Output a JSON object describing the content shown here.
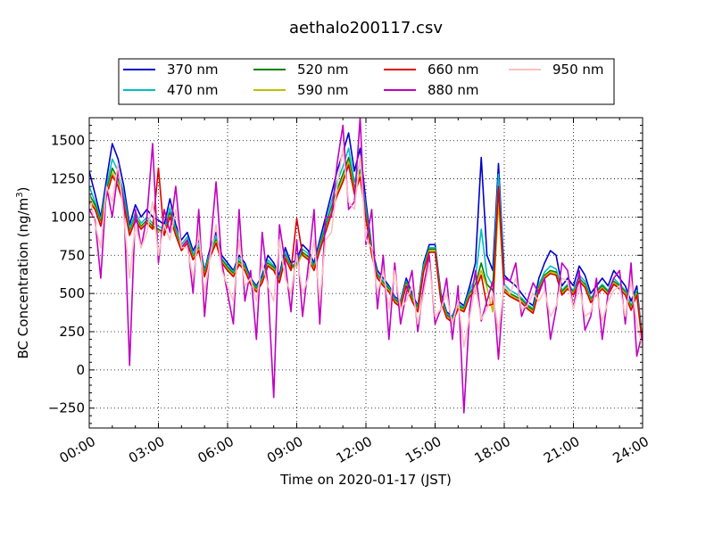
{
  "chart_data": {
    "type": "line",
    "title": "aethalo200117.csv",
    "xlabel": "Time on 2020-01-17 (JST)",
    "ylabel": "BC Concentration (ng/m",
    "ylabel_sup": "3",
    "ylabel_close": ")",
    "xlim": [
      0,
      24
    ],
    "ylim": [
      -380,
      1650
    ],
    "grid": true,
    "legend_position": "top-center",
    "x_ticks": [
      0,
      3,
      6,
      9,
      12,
      15,
      18,
      21,
      24
    ],
    "x_tick_labels": [
      "00:00",
      "03:00",
      "06:00",
      "09:00",
      "12:00",
      "15:00",
      "18:00",
      "21:00",
      "24:00"
    ],
    "y_ticks": [
      -250,
      0,
      250,
      500,
      750,
      1000,
      1250,
      1500
    ],
    "y_tick_labels": [
      "−250",
      "0",
      "250",
      "500",
      "750",
      "1000",
      "1250",
      "1500"
    ],
    "x": [
      0,
      0.25,
      0.5,
      0.75,
      1,
      1.25,
      1.5,
      1.75,
      2,
      2.25,
      2.5,
      2.75,
      3,
      3.25,
      3.5,
      3.75,
      4,
      4.25,
      4.5,
      4.75,
      5,
      5.25,
      5.5,
      5.75,
      6,
      6.25,
      6.5,
      6.75,
      7,
      7.25,
      7.5,
      7.75,
      8,
      8.25,
      8.5,
      8.75,
      9,
      9.25,
      9.5,
      9.75,
      10,
      10.25,
      10.5,
      10.75,
      11,
      11.25,
      11.5,
      11.75,
      12,
      12.25,
      12.5,
      12.75,
      13,
      13.25,
      13.5,
      13.75,
      14,
      14.25,
      14.5,
      14.75,
      15,
      15.25,
      15.5,
      15.75,
      16,
      16.25,
      16.5,
      16.75,
      17,
      17.25,
      17.5,
      17.75,
      18,
      18.25,
      18.5,
      18.75,
      19,
      19.25,
      19.5,
      19.75,
      20,
      20.25,
      20.5,
      20.75,
      21,
      21.25,
      21.5,
      21.75,
      22,
      22.25,
      22.5,
      22.75,
      23,
      23.25,
      23.5,
      23.75,
      24
    ],
    "series": [
      {
        "name": "370 nm",
        "color": "#0000cc",
        "values": [
          1300,
          1150,
          1000,
          1250,
          1480,
          1380,
          1200,
          950,
          1080,
          1000,
          1050,
          1000,
          980,
          950,
          1120,
          950,
          850,
          900,
          780,
          850,
          650,
          800,
          900,
          750,
          700,
          650,
          750,
          700,
          600,
          550,
          620,
          750,
          700,
          620,
          800,
          700,
          720,
          820,
          780,
          700,
          850,
          1000,
          1150,
          1300,
          1420,
          1550,
          1300,
          1450,
          1100,
          800,
          650,
          600,
          550,
          480,
          450,
          600,
          500,
          420,
          700,
          820,
          820,
          500,
          380,
          350,
          450,
          420,
          550,
          700,
          1390,
          750,
          650,
          1350,
          620,
          580,
          550,
          500,
          450,
          420,
          600,
          700,
          780,
          750,
          550,
          600,
          550,
          680,
          620,
          500,
          550,
          600,
          550,
          650,
          600,
          550,
          450,
          550,
          180
        ]
      },
      {
        "name": "470 nm",
        "color": "#00bfbf",
        "values": [
          1200,
          1100,
          980,
          1200,
          1380,
          1300,
          1150,
          920,
          1030,
          960,
          1000,
          960,
          940,
          920,
          1060,
          920,
          820,
          870,
          760,
          820,
          640,
          780,
          870,
          730,
          680,
          640,
          730,
          680,
          590,
          540,
          600,
          720,
          680,
          600,
          770,
          680,
          700,
          790,
          760,
          680,
          820,
          960,
          1100,
          1230,
          1330,
          1450,
          1230,
          1360,
          1050,
          780,
          630,
          580,
          540,
          470,
          440,
          580,
          480,
          410,
          680,
          800,
          800,
          480,
          370,
          340,
          430,
          410,
          520,
          600,
          920,
          620,
          550,
          1280,
          560,
          520,
          500,
          470,
          430,
          400,
          560,
          640,
          680,
          660,
          520,
          560,
          520,
          620,
          580,
          470,
          520,
          560,
          520,
          600,
          560,
          520,
          420,
          520,
          170
        ]
      },
      {
        "name": "520 nm",
        "color": "#008000",
        "values": [
          1150,
          1080,
          960,
          1170,
          1320,
          1250,
          1110,
          900,
          1000,
          940,
          980,
          940,
          920,
          900,
          1030,
          900,
          800,
          850,
          740,
          800,
          630,
          760,
          850,
          720,
          670,
          630,
          710,
          670,
          580,
          530,
          590,
          700,
          670,
          590,
          750,
          670,
          690,
          770,
          740,
          670,
          800,
          930,
          1060,
          1180,
          1280,
          1390,
          1190,
          1310,
          1020,
          770,
          620,
          570,
          530,
          460,
          430,
          570,
          470,
          400,
          660,
          790,
          790,
          470,
          360,
          330,
          420,
          400,
          500,
          560,
          700,
          560,
          520,
          1150,
          530,
          500,
          480,
          460,
          420,
          390,
          540,
          620,
          650,
          640,
          510,
          550,
          510,
          600,
          560,
          460,
          510,
          550,
          510,
          580,
          550,
          510,
          410,
          510,
          165
        ]
      },
      {
        "name": "590 nm",
        "color": "#bfbf00",
        "values": [
          1120,
          1060,
          950,
          1150,
          1290,
          1220,
          1090,
          890,
          990,
          930,
          970,
          930,
          910,
          890,
          1010,
          890,
          790,
          840,
          730,
          790,
          620,
          750,
          840,
          710,
          660,
          620,
          700,
          660,
          570,
          520,
          580,
          690,
          660,
          580,
          740,
          660,
          680,
          760,
          730,
          660,
          790,
          910,
          1040,
          1160,
          1250,
          1360,
          1170,
          1280,
          1000,
          760,
          610,
          560,
          520,
          450,
          420,
          560,
          460,
          390,
          650,
          780,
          780,
          460,
          350,
          320,
          410,
          390,
          490,
          540,
          650,
          540,
          380,
          1100,
          520,
          490,
          470,
          450,
          410,
          380,
          530,
          610,
          640,
          630,
          500,
          540,
          500,
          590,
          550,
          450,
          500,
          540,
          500,
          570,
          540,
          500,
          400,
          500,
          160
        ]
      },
      {
        "name": "660 nm",
        "color": "#dd0000",
        "values": [
          1100,
          1050,
          940,
          1140,
          1270,
          1200,
          1080,
          880,
          980,
          920,
          960,
          920,
          1320,
          880,
          1000,
          880,
          780,
          830,
          720,
          780,
          610,
          740,
          830,
          700,
          650,
          610,
          690,
          650,
          560,
          510,
          570,
          680,
          650,
          570,
          730,
          650,
          990,
          750,
          720,
          650,
          780,
          900,
          1020,
          1140,
          1230,
          1340,
          1150,
          1260,
          990,
          750,
          600,
          550,
          510,
          440,
          410,
          550,
          450,
          380,
          640,
          770,
          770,
          450,
          340,
          310,
          400,
          380,
          480,
          520,
          620,
          420,
          430,
          1200,
          510,
          480,
          460,
          440,
          400,
          370,
          520,
          600,
          630,
          620,
          490,
          530,
          490,
          580,
          540,
          440,
          490,
          530,
          490,
          560,
          530,
          490,
          390,
          490,
          155
        ]
      },
      {
        "name": "880 nm",
        "color": "#c000c0",
        "values": [
          1050,
          980,
          600,
          1200,
          1000,
          1300,
          1100,
          30,
          1050,
          800,
          1000,
          1480,
          700,
          1050,
          900,
          1200,
          800,
          850,
          500,
          1050,
          350,
          800,
          1230,
          700,
          500,
          300,
          1050,
          450,
          650,
          200,
          900,
          550,
          -180,
          950,
          700,
          380,
          850,
          350,
          680,
          1050,
          300,
          1000,
          1000,
          1350,
          1600,
          1050,
          1100,
          1650,
          820,
          1050,
          400,
          750,
          200,
          700,
          300,
          500,
          650,
          250,
          550,
          750,
          300,
          400,
          600,
          200,
          550,
          -280,
          400,
          650,
          320,
          450,
          580,
          70,
          600,
          580,
          700,
          350,
          450,
          570,
          500,
          600,
          200,
          400,
          700,
          650,
          400,
          650,
          260,
          350,
          600,
          200,
          500,
          600,
          650,
          300,
          700,
          90,
          250
        ]
      },
      {
        "name": "950 nm",
        "color": "#ffbfbf",
        "values": [
          1150,
          950,
          800,
          1200,
          1100,
          1350,
          1000,
          600,
          950,
          800,
          900,
          1100,
          750,
          950,
          850,
          1050,
          800,
          800,
          600,
          900,
          500,
          750,
          950,
          650,
          550,
          450,
          850,
          550,
          600,
          450,
          700,
          550,
          450,
          850,
          600,
          500,
          750,
          500,
          600,
          850,
          450,
          850,
          900,
          1200,
          1450,
          1100,
          1050,
          1400,
          850,
          800,
          500,
          650,
          400,
          650,
          400,
          450,
          550,
          300,
          500,
          700,
          350,
          400,
          500,
          300,
          450,
          150,
          350,
          550,
          330,
          400,
          500,
          250,
          550,
          500,
          600,
          400,
          420,
          500,
          450,
          520,
          350,
          420,
          600,
          580,
          400,
          550,
          350,
          380,
          520,
          320,
          450,
          520,
          550,
          350,
          580,
          300,
          150
        ]
      }
    ]
  }
}
